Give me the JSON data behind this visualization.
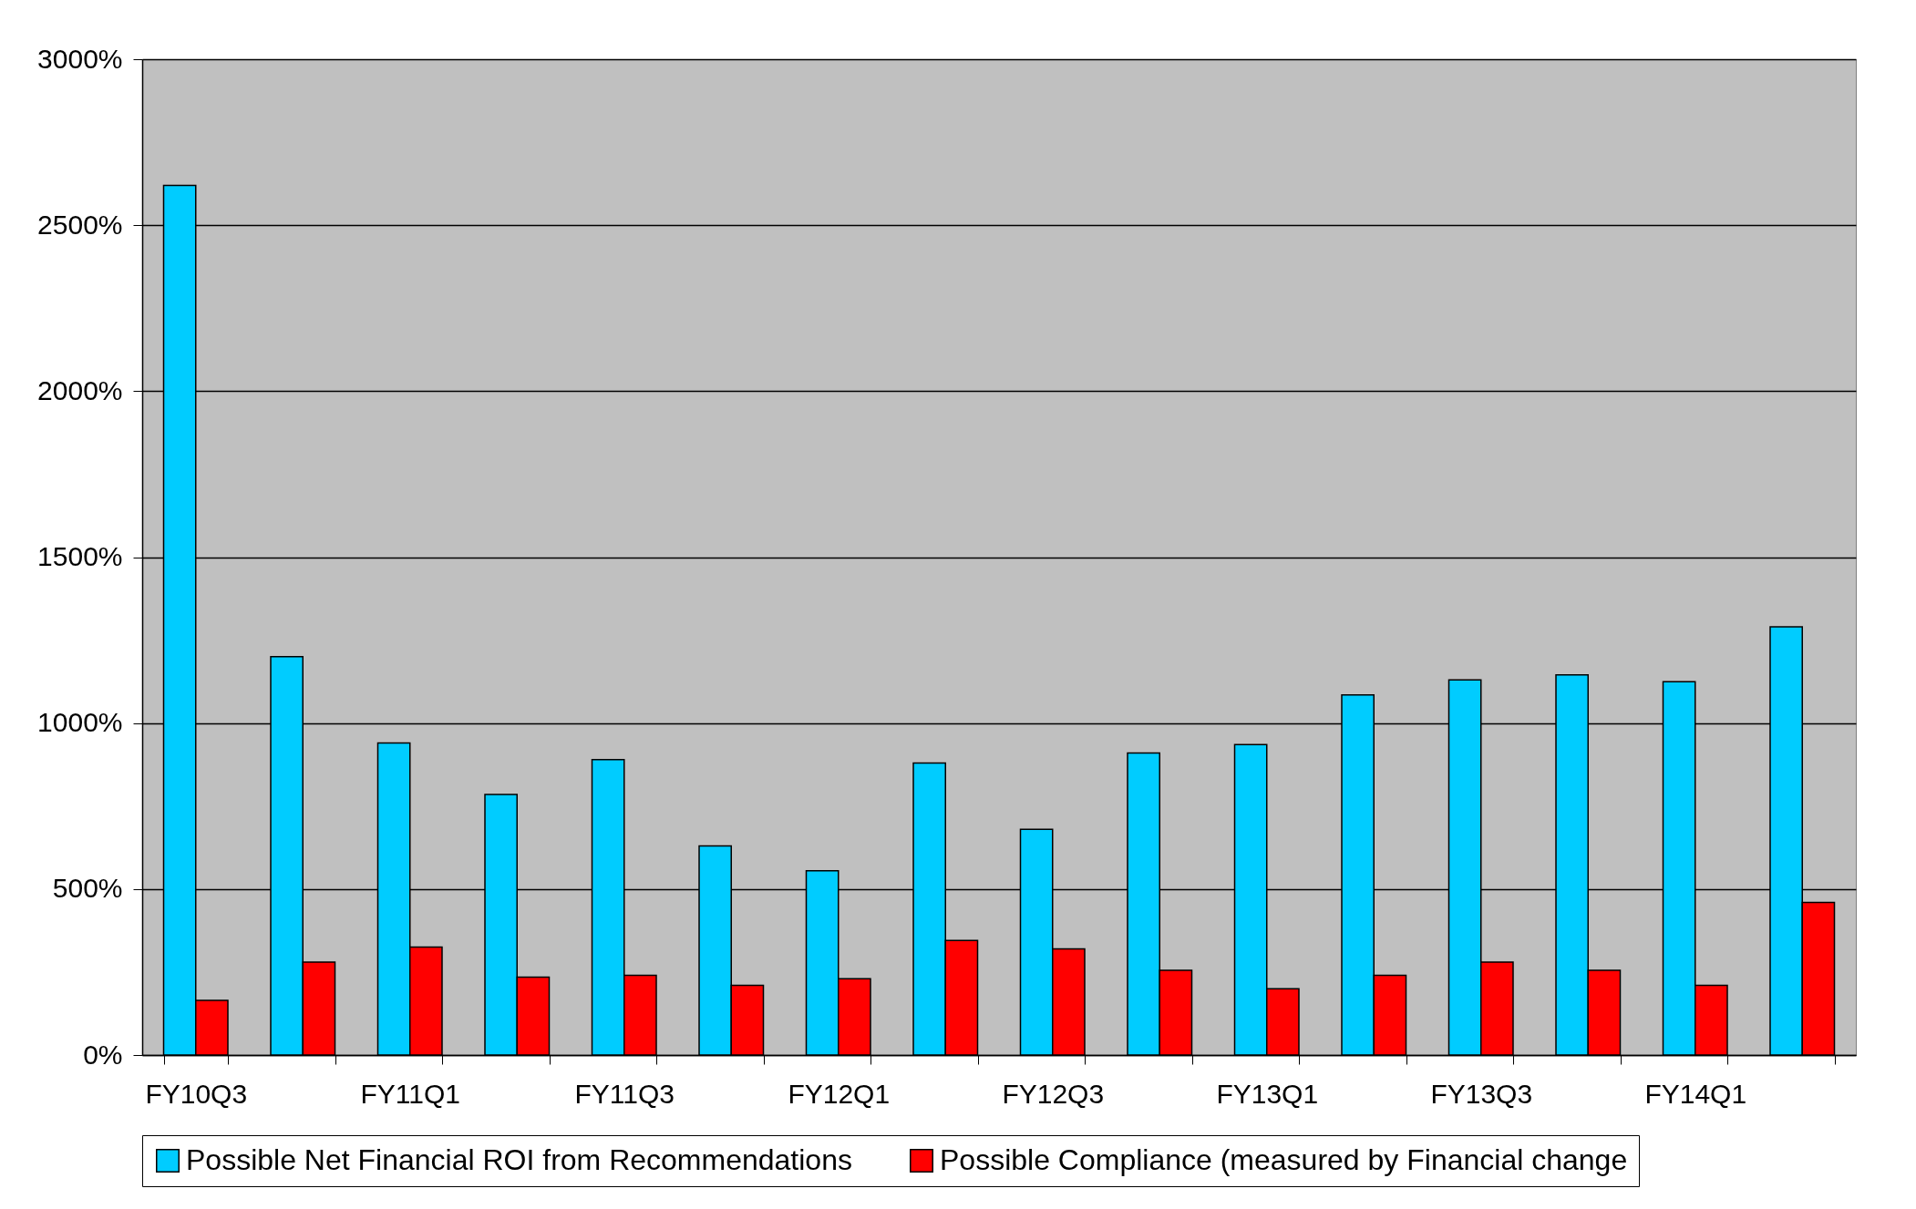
{
  "chart_data": {
    "type": "bar",
    "categories": [
      "FY10Q3",
      null,
      "FY11Q1",
      null,
      "FY11Q3",
      null,
      "FY12Q1",
      null,
      "FY12Q3",
      null,
      "FY13Q1",
      null,
      "FY13Q3",
      null,
      "FY14Q1",
      null
    ],
    "series": [
      {
        "name": "Possible Net Financial ROI from Recommendations",
        "color": "#00ccff",
        "values": [
          2620,
          1200,
          940,
          785,
          890,
          630,
          555,
          880,
          680,
          910,
          935,
          1085,
          1130,
          1145,
          1125,
          1290
        ]
      },
      {
        "name": "Possible Compliance (measured by Financial change",
        "color": "#ff0000",
        "values": [
          165,
          280,
          325,
          235,
          240,
          210,
          230,
          345,
          320,
          255,
          200,
          240,
          280,
          255,
          210,
          460
        ]
      }
    ],
    "ylim": [
      0,
      3000
    ],
    "yticks": [
      {
        "value": 0,
        "label": "0%"
      },
      {
        "value": 500,
        "label": "500%"
      },
      {
        "value": 1000,
        "label": "1000%"
      },
      {
        "value": 1500,
        "label": "1500%"
      },
      {
        "value": 2000,
        "label": "2000%"
      },
      {
        "value": 2500,
        "label": "2500%"
      },
      {
        "value": 3000,
        "label": "3000%"
      }
    ],
    "grid": "y",
    "legend": "bottom"
  }
}
